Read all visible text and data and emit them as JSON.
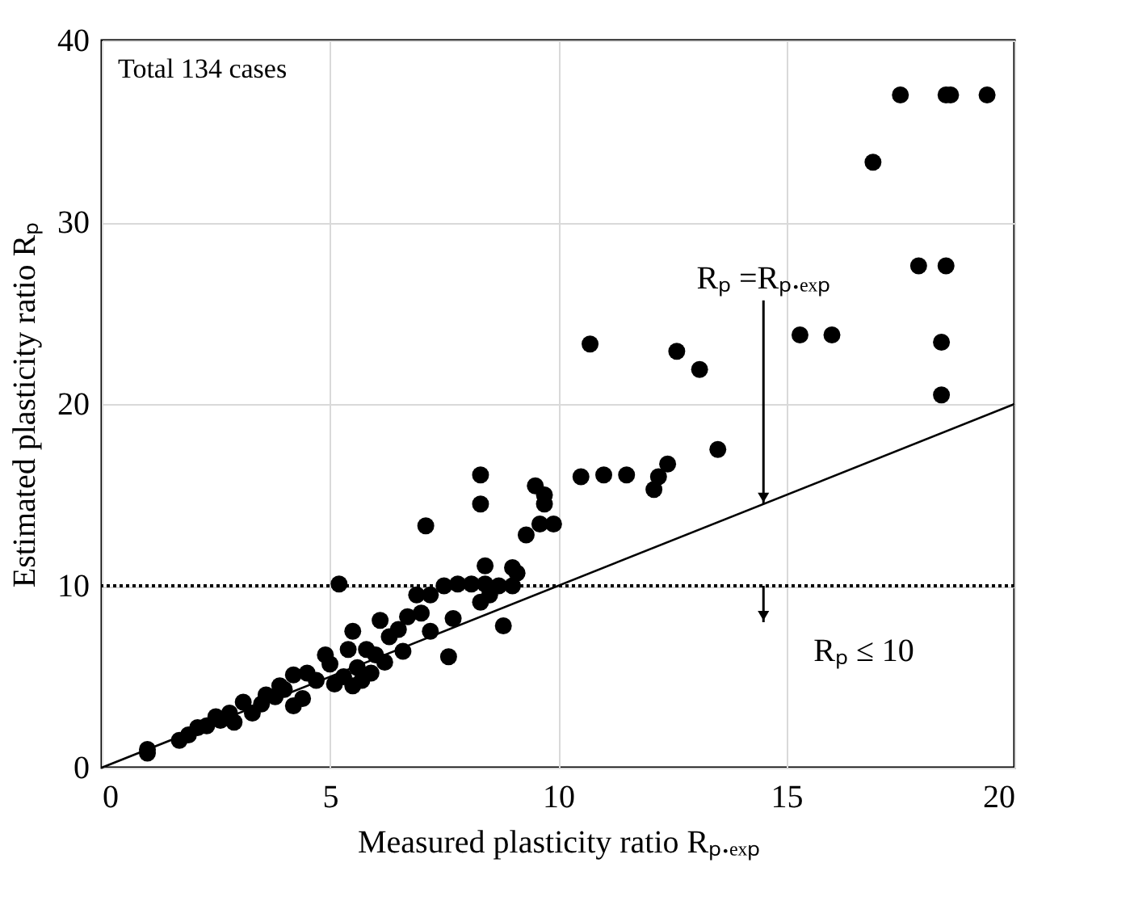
{
  "chart_data": {
    "type": "scatter",
    "xlabel": "Measured plasticity ratio Rₚ.ₑₓₚ",
    "ylabel": "Estimated plasticity ratio Rₚ",
    "xlim": [
      0,
      20
    ],
    "ylim": [
      0,
      40
    ],
    "xticks": [
      0,
      5,
      10,
      15,
      20
    ],
    "yticks": [
      0,
      10,
      20,
      30,
      40
    ],
    "grid": true,
    "marker": "circle",
    "series": [
      {
        "color": "#000000",
        "x": [
          17.5,
          18.5,
          18.6,
          19.4,
          16.9,
          17.9,
          18.5,
          15.3,
          16.0,
          18.4,
          18.4,
          10.7,
          12.6,
          13.1,
          13.5,
          12.4,
          12.2,
          12.1,
          11.5,
          11.0,
          10.5,
          8.3,
          8.3,
          9.5,
          9.7,
          9.7,
          9.6,
          9.9,
          9.3,
          7.1,
          9.0,
          9.1,
          8.4,
          5.2,
          7.8,
          8.1,
          8.4,
          8.7,
          9.0,
          8.5,
          8.3,
          6.1,
          7.2,
          6.9,
          7.5,
          7.7,
          7.6,
          8.8,
          7.2,
          7.0,
          6.7,
          6.5,
          6.3,
          6.6,
          6.0,
          5.8,
          5.5,
          5.4,
          5.6,
          5.3,
          5.0,
          4.9,
          5.1,
          5.5,
          4.7,
          4.5,
          4.2,
          4.0,
          3.8,
          4.2,
          3.5,
          3.3,
          3.6,
          3.1,
          2.8,
          2.6,
          2.9,
          2.3,
          2.1,
          1.9,
          1.7,
          1.0,
          1.0,
          2.5,
          3.9,
          4.4,
          5.9,
          6.2,
          5.7
        ],
        "values": [
          37,
          37,
          37,
          37,
          33.3,
          27.6,
          27.6,
          23.8,
          23.8,
          23.4,
          20.5,
          23.3,
          22.9,
          21.9,
          17.5,
          16.7,
          16.0,
          15.3,
          16.1,
          16.1,
          16.0,
          16.1,
          14.5,
          15.5,
          15.0,
          14.5,
          13.4,
          13.4,
          12.8,
          13.3,
          11.0,
          10.7,
          11.1,
          10.1,
          10.1,
          10.1,
          10.1,
          10.0,
          10.0,
          9.5,
          9.1,
          8.1,
          9.5,
          9.5,
          10.0,
          8.2,
          6.1,
          7.8,
          7.5,
          8.5,
          8.3,
          7.6,
          7.2,
          6.4,
          6.2,
          6.5,
          7.5,
          6.5,
          5.5,
          5.0,
          5.7,
          6.2,
          4.6,
          4.5,
          4.8,
          5.2,
          5.1,
          4.3,
          3.9,
          3.4,
          3.5,
          3.0,
          4.0,
          3.6,
          3.0,
          2.6,
          2.5,
          2.3,
          2.2,
          1.8,
          1.5,
          1.0,
          0.8,
          2.8,
          4.5,
          3.8,
          5.2,
          5.8,
          4.8
        ]
      },
      {
        "type": "line",
        "color": "#000000",
        "x": [
          0,
          20
        ],
        "values": [
          0,
          20
        ],
        "line_style": "solid",
        "marker": "none"
      }
    ],
    "ref_lines": [
      {
        "axis": "y",
        "value": 10,
        "color": "#000000",
        "line_style": "dotted"
      }
    ],
    "annotations": [
      "Total 134 cases",
      {
        "text": "Rₚ =Rₚ.ₑₓₚ",
        "x": 14.5,
        "y": 14.5
      },
      {
        "text": "Rₚ ≤ 10",
        "x": 14.5,
        "y": 10
      }
    ]
  }
}
